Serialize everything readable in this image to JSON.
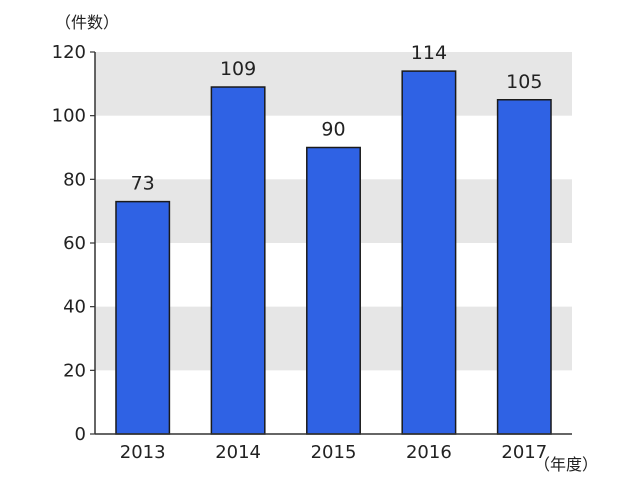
{
  "chart_data": {
    "type": "bar",
    "title": "",
    "ylabel": "（件数）",
    "xlabel": "（年度）",
    "categories": [
      "2013",
      "2014",
      "2015",
      "2016",
      "2017"
    ],
    "values": [
      73,
      109,
      90,
      114,
      105
    ],
    "data_labels": [
      "73",
      "109",
      "90",
      "114",
      "105"
    ],
    "ylim": [
      0,
      120
    ],
    "yticks": [
      0,
      20,
      40,
      60,
      80,
      100,
      120
    ],
    "grid": "alternating horizontal bands",
    "legend": "none",
    "colors": {
      "bar_fill": "#2f62e4",
      "bar_stroke": "#1a1a1a",
      "band": "#e6e6e6",
      "axis": "#333333"
    }
  }
}
